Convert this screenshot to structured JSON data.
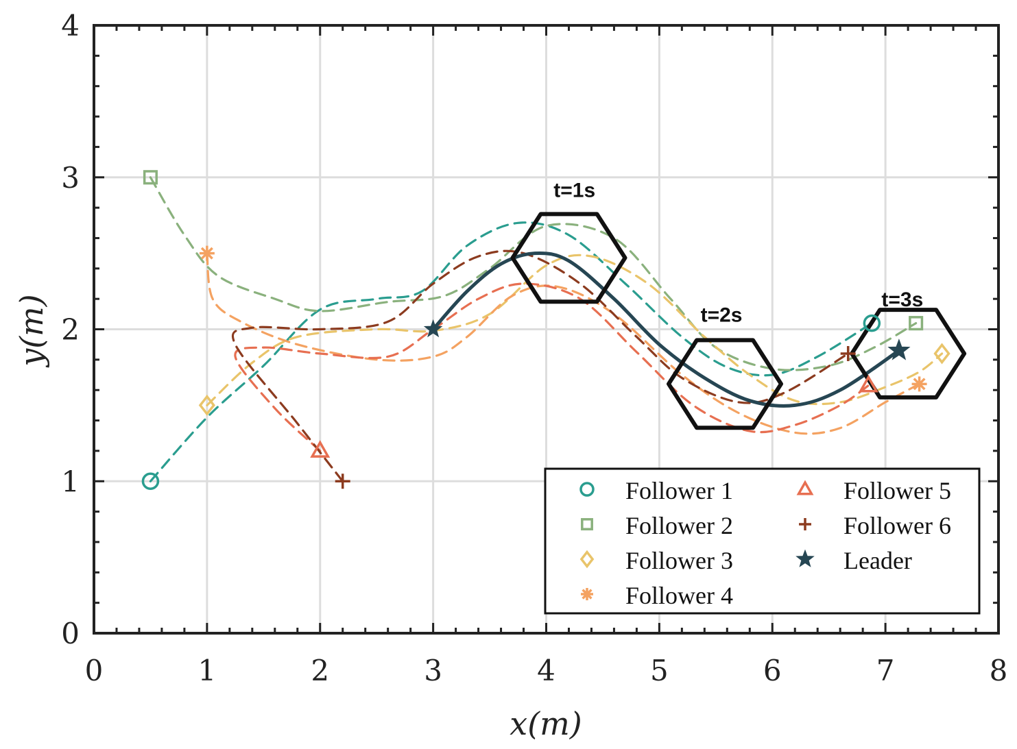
{
  "chart_data": {
    "type": "line",
    "title": "",
    "xlabel": "x(m)",
    "ylabel": "y(m)",
    "xlim": [
      0,
      8
    ],
    "ylim": [
      0,
      4
    ],
    "xticks": [
      0,
      1,
      2,
      3,
      4,
      5,
      6,
      7,
      8
    ],
    "yticks": [
      0,
      1,
      2,
      3,
      4
    ],
    "grid": true,
    "legend_position": "bottom-right",
    "annotations": [
      {
        "text": "t=1s",
        "x": 4.25,
        "y": 2.87
      },
      {
        "text": "t=2s",
        "x": 5.55,
        "y": 2.05
      },
      {
        "text": "t=3s",
        "x": 7.15,
        "y": 2.15
      }
    ],
    "formation_hexagons": [
      {
        "time": "t=1s",
        "center": [
          4.2,
          2.47
        ]
      },
      {
        "time": "t=2s",
        "center": [
          5.58,
          1.64
        ]
      },
      {
        "time": "t=3s",
        "center": [
          7.2,
          1.84
        ]
      }
    ],
    "series": [
      {
        "name": "Follower 1",
        "marker": "circle",
        "color": "#2a9d8f",
        "style": "dashed",
        "start": [
          0.5,
          1.0
        ],
        "end": [
          6.88,
          2.04
        ],
        "points": [
          [
            0.5,
            1.0
          ],
          [
            1.0,
            1.42
          ],
          [
            1.5,
            1.76
          ],
          [
            2.0,
            2.13
          ],
          [
            2.5,
            2.2
          ],
          [
            2.9,
            2.25
          ],
          [
            3.3,
            2.55
          ],
          [
            3.75,
            2.7
          ],
          [
            4.2,
            2.62
          ],
          [
            4.7,
            2.3
          ],
          [
            5.2,
            1.95
          ],
          [
            5.6,
            1.75
          ],
          [
            6.0,
            1.7
          ],
          [
            6.4,
            1.82
          ],
          [
            6.88,
            2.04
          ]
        ]
      },
      {
        "name": "Follower 2",
        "marker": "square",
        "color": "#8ab17d",
        "style": "dashed",
        "start": [
          0.5,
          3.0
        ],
        "end": [
          7.27,
          2.04
        ],
        "points": [
          [
            0.5,
            3.0
          ],
          [
            0.8,
            2.62
          ],
          [
            1.1,
            2.35
          ],
          [
            1.6,
            2.2
          ],
          [
            2.0,
            2.12
          ],
          [
            2.6,
            2.18
          ],
          [
            3.1,
            2.22
          ],
          [
            3.5,
            2.4
          ],
          [
            4.0,
            2.68
          ],
          [
            4.6,
            2.6
          ],
          [
            5.1,
            2.2
          ],
          [
            5.5,
            1.88
          ],
          [
            6.0,
            1.74
          ],
          [
            6.5,
            1.76
          ],
          [
            6.9,
            1.88
          ],
          [
            7.27,
            2.04
          ]
        ]
      },
      {
        "name": "Follower 3",
        "marker": "diamond",
        "color": "#e9c46a",
        "style": "dashed",
        "start": [
          1.0,
          1.5
        ],
        "end": [
          7.5,
          1.84
        ],
        "points": [
          [
            1.0,
            1.5
          ],
          [
            1.4,
            1.78
          ],
          [
            1.8,
            1.95
          ],
          [
            2.5,
            2.0
          ],
          [
            3.0,
            1.99
          ],
          [
            3.5,
            2.1
          ],
          [
            4.0,
            2.42
          ],
          [
            4.4,
            2.48
          ],
          [
            4.9,
            2.3
          ],
          [
            5.4,
            1.95
          ],
          [
            5.8,
            1.7
          ],
          [
            6.2,
            1.53
          ],
          [
            6.6,
            1.52
          ],
          [
            7.0,
            1.62
          ],
          [
            7.3,
            1.72
          ],
          [
            7.5,
            1.84
          ]
        ]
      },
      {
        "name": "Follower 4",
        "marker": "asterisk",
        "color": "#f4a261",
        "style": "dashed",
        "start": [
          1.0,
          2.5
        ],
        "end": [
          7.3,
          1.64
        ],
        "points": [
          [
            1.0,
            2.5
          ],
          [
            1.05,
            2.2
          ],
          [
            1.3,
            2.05
          ],
          [
            1.8,
            1.9
          ],
          [
            2.5,
            1.8
          ],
          [
            3.0,
            1.82
          ],
          [
            3.3,
            1.95
          ],
          [
            3.7,
            2.22
          ],
          [
            4.1,
            2.28
          ],
          [
            4.6,
            2.1
          ],
          [
            5.2,
            1.7
          ],
          [
            5.7,
            1.45
          ],
          [
            6.2,
            1.32
          ],
          [
            6.6,
            1.35
          ],
          [
            7.0,
            1.52
          ],
          [
            7.3,
            1.64
          ]
        ]
      },
      {
        "name": "Follower 5",
        "marker": "triangle",
        "color": "#e76f51",
        "style": "dashed",
        "start": [
          2.0,
          1.2
        ],
        "end": [
          6.85,
          1.63
        ],
        "points": [
          [
            2.0,
            1.2
          ],
          [
            1.6,
            1.48
          ],
          [
            1.25,
            1.82
          ],
          [
            1.5,
            1.88
          ],
          [
            2.0,
            1.84
          ],
          [
            2.6,
            1.82
          ],
          [
            3.0,
            2.0
          ],
          [
            3.4,
            2.2
          ],
          [
            3.8,
            2.3
          ],
          [
            4.3,
            2.2
          ],
          [
            4.8,
            1.85
          ],
          [
            5.3,
            1.5
          ],
          [
            5.8,
            1.33
          ],
          [
            6.2,
            1.37
          ],
          [
            6.6,
            1.5
          ],
          [
            6.85,
            1.63
          ]
        ]
      },
      {
        "name": "Follower 6",
        "marker": "plus",
        "color": "#8c3b1f",
        "style": "dashed",
        "start": [
          2.2,
          1.0
        ],
        "end": [
          6.67,
          1.84
        ],
        "points": [
          [
            2.2,
            1.0
          ],
          [
            1.8,
            1.38
          ],
          [
            1.25,
            1.9
          ],
          [
            1.4,
            2.01
          ],
          [
            2.0,
            2.0
          ],
          [
            2.6,
            2.05
          ],
          [
            3.0,
            2.3
          ],
          [
            3.4,
            2.48
          ],
          [
            3.8,
            2.5
          ],
          [
            4.3,
            2.3
          ],
          [
            4.8,
            1.95
          ],
          [
            5.2,
            1.68
          ],
          [
            5.7,
            1.52
          ],
          [
            6.1,
            1.58
          ],
          [
            6.67,
            1.84
          ]
        ]
      },
      {
        "name": "Leader",
        "marker": "star",
        "color": "#264653",
        "style": "solid",
        "start": [
          3.0,
          2.0
        ],
        "end": [
          7.12,
          1.86
        ],
        "points": [
          [
            3.0,
            2.0
          ],
          [
            3.3,
            2.25
          ],
          [
            3.6,
            2.43
          ],
          [
            3.9,
            2.5
          ],
          [
            4.2,
            2.45
          ],
          [
            4.6,
            2.2
          ],
          [
            5.0,
            1.9
          ],
          [
            5.4,
            1.68
          ],
          [
            5.8,
            1.53
          ],
          [
            6.2,
            1.5
          ],
          [
            6.6,
            1.6
          ],
          [
            7.12,
            1.86
          ]
        ]
      }
    ]
  }
}
